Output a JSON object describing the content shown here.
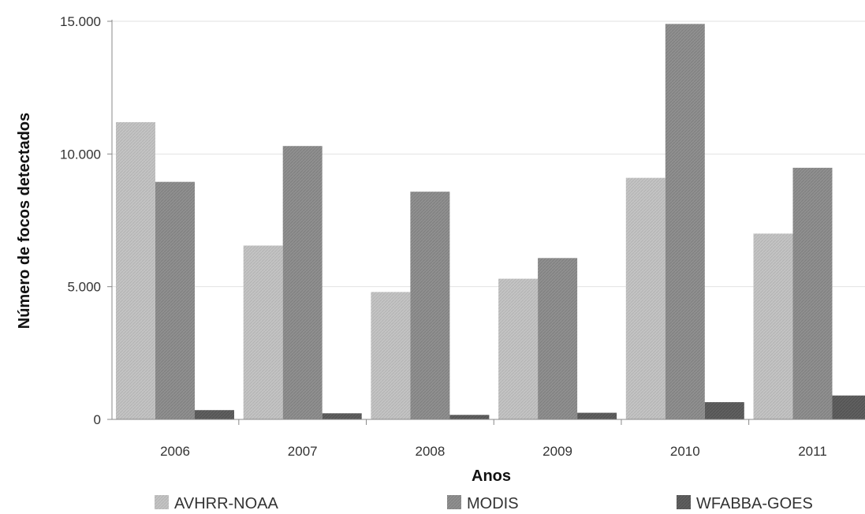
{
  "chart_data": {
    "type": "bar",
    "title": "",
    "xlabel": "Anos",
    "ylabel": "Número de focos detectados",
    "categories": [
      "2006",
      "2007",
      "2008",
      "2009",
      "2010",
      "2011"
    ],
    "series": [
      {
        "name": "AVHRR-NOAA",
        "color": "#c2c2c2",
        "values": [
          11200,
          6550,
          4800,
          5300,
          9100,
          7000
        ]
      },
      {
        "name": "MODIS",
        "color": "#8e8e8e",
        "values": [
          8950,
          10300,
          8580,
          6080,
          14900,
          9480
        ]
      },
      {
        "name": "WFABBA-GOES",
        "color": "#5e5e5e",
        "values": [
          350,
          230,
          170,
          250,
          650,
          900
        ]
      }
    ],
    "ylim": [
      0,
      15000
    ],
    "yticks": [
      {
        "value": 0,
        "label": "0"
      },
      {
        "value": 5000,
        "label": "5.000"
      },
      {
        "value": 10000,
        "label": "10.000"
      },
      {
        "value": 15000,
        "label": "15.000"
      }
    ],
    "grid": true,
    "legend_position": "bottom"
  }
}
